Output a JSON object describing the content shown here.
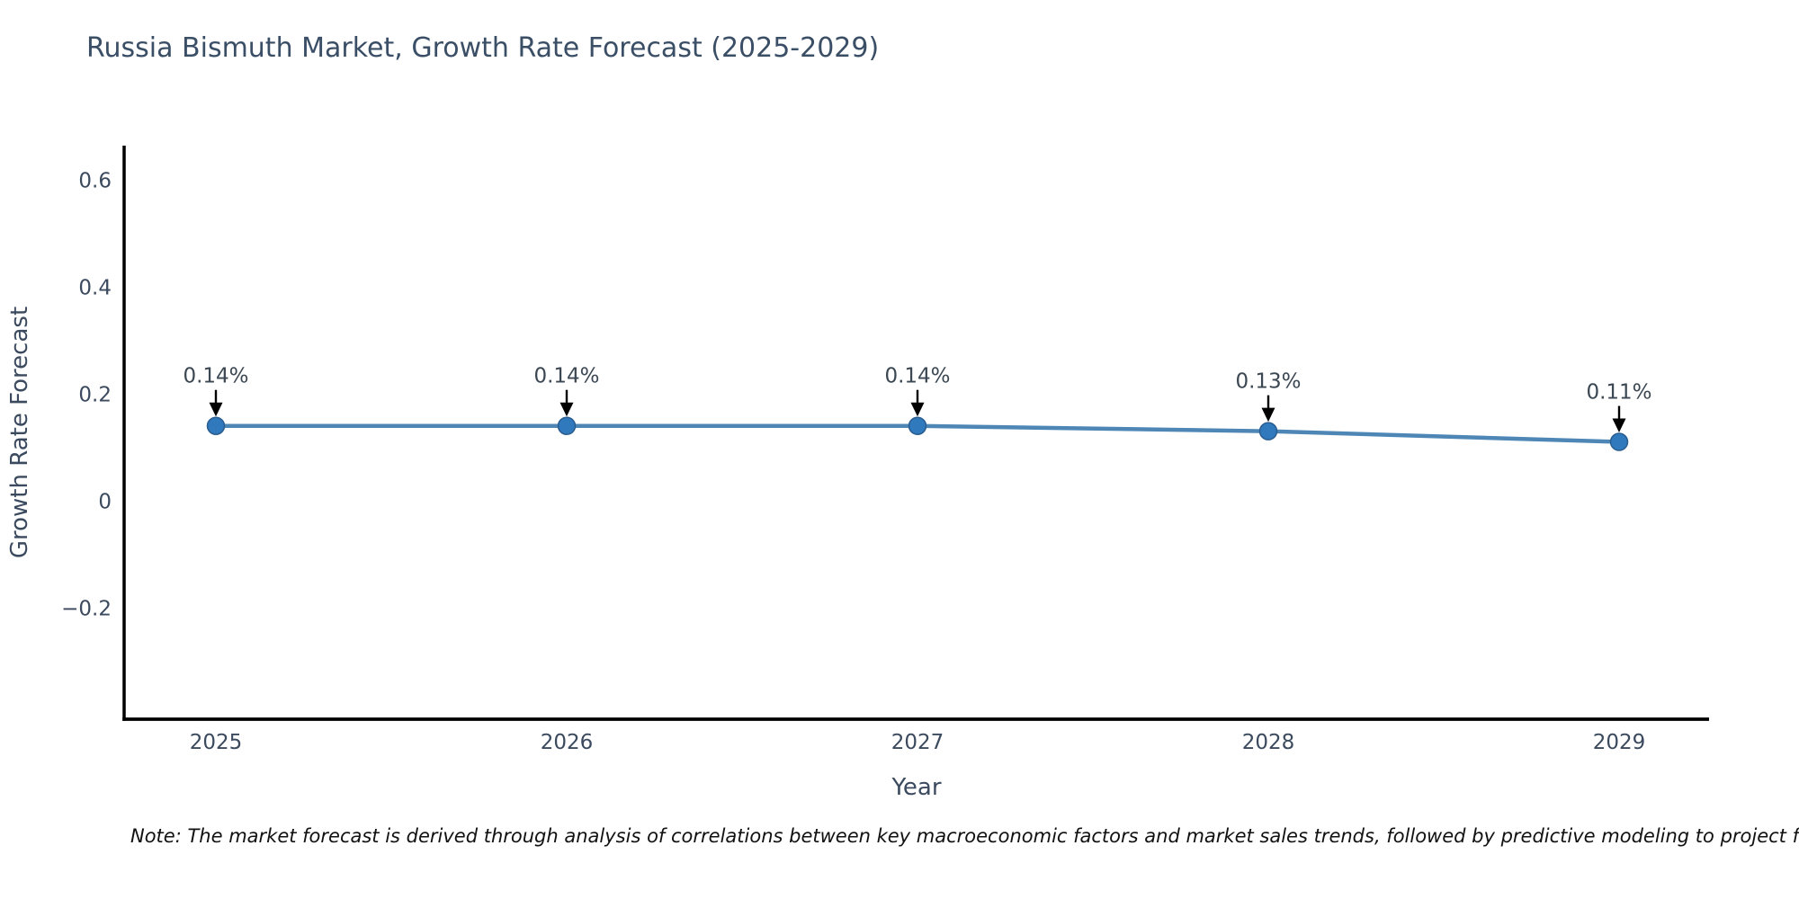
{
  "title": "Russia Bismuth Market, Growth Rate Forecast (2025-2029)",
  "note": "Note: The market forecast is derived through analysis of correlations between key macroeconomic factors and market sales trends, followed by predictive modeling to project future sa",
  "chart_data": {
    "type": "line",
    "title": "Russia Bismuth Market, Growth Rate Forecast (2025-2029)",
    "xlabel": "Year",
    "ylabel": "Growth Rate Forecast",
    "categories": [
      "2025",
      "2026",
      "2027",
      "2028",
      "2029"
    ],
    "values": [
      0.14,
      0.14,
      0.14,
      0.13,
      0.11
    ],
    "point_labels": [
      "0.14%",
      "0.14%",
      "0.14%",
      "0.13%",
      "0.11%"
    ],
    "yticks": [
      0.6,
      0.4,
      0.2,
      0,
      -0.2
    ],
    "ylim": [
      -0.41,
      0.66
    ],
    "grid": false,
    "legend": "none",
    "annotation_style": "down-arrow",
    "colors": {
      "line": "#4e87b5",
      "marker": "#3179bd",
      "marker_edge": "#2a5d8f",
      "arrow": "#000000",
      "title_text": "#3a4e66",
      "tick_text": "#3b4a5e",
      "annotation_text": "#3b4752",
      "note_text": "#111111",
      "axis_line": "#000000",
      "background": "#ffffff"
    }
  }
}
